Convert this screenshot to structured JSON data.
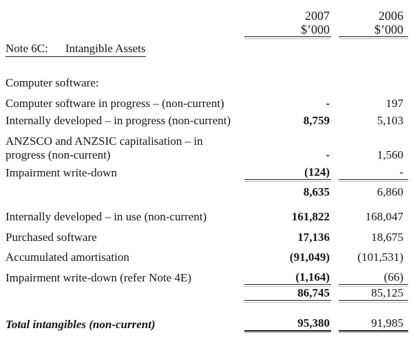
{
  "document": {
    "kind": "financial-statement-note",
    "colors": {
      "ink": "#151515",
      "rule": "#1b1b1b",
      "rule_echo": "#bdbdbd",
      "background": "#ffffff"
    }
  },
  "header": {
    "year_2007": "2007",
    "year_2006": "2006",
    "unit_2007": "$’000",
    "unit_2006": "$’000"
  },
  "note_heading": {
    "prefix": "Note 6C:",
    "title": "Intangible Assets"
  },
  "section": {
    "label": "Computer software:"
  },
  "rows": [
    {
      "label": "Computer software in progress – (non-current)",
      "v2007": "-",
      "v2006": "197"
    },
    {
      "label": "Internally developed – in progress (non-current)",
      "v2007": "8,759",
      "v2006": "5,103"
    },
    {
      "label_line1": "ANZSCO and ANZSIC capitalisation – in",
      "label_line2": "progress (non-current)",
      "v2007": "-",
      "v2006": "1,560"
    },
    {
      "label": "Impairment write-down",
      "v2007": "(124)",
      "v2006": "-"
    },
    {
      "label": "",
      "v2007": "8,635",
      "v2006": "6,860"
    },
    {
      "label": "Internally developed – in use (non-current)",
      "v2007": "161,822",
      "v2006": "168,047"
    },
    {
      "label": "Purchased software",
      "v2007": "17,136",
      "v2006": "18,675"
    },
    {
      "label": "Accumulated amortisation",
      "v2007": "(91,049)",
      "v2006": "(101,531)"
    },
    {
      "label": "Impairment write-down (refer Note 4E)",
      "v2007": "(1,164)",
      "v2006": "(66)"
    },
    {
      "label": "",
      "v2007": "86,745",
      "v2006": "85,125"
    },
    {
      "label": "Total intangibles (non-current)",
      "v2007": "95,380",
      "v2006": "91,985"
    }
  ]
}
